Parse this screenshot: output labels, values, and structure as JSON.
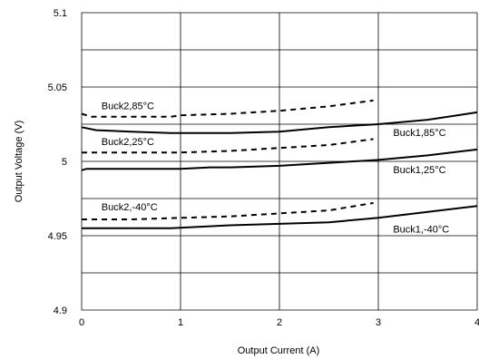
{
  "chart_data": {
    "type": "line",
    "xlabel": "Output Current (A)",
    "ylabel": "Output Voltage (V)",
    "xlim": [
      0,
      4
    ],
    "ylim": [
      4.9,
      5.1
    ],
    "x_ticks": [
      "0",
      "1",
      "2",
      "3",
      "4"
    ],
    "y_ticks": [
      "4.9",
      "4.95",
      "5",
      "5.05",
      "5.1"
    ],
    "grid": true,
    "legend": "none",
    "series": [
      {
        "name": "Buck2,85°C",
        "style": "dashed",
        "x": [
          0,
          0.05,
          0.1,
          0.5,
          0.9,
          1.0,
          1.5,
          2.0,
          2.5,
          2.95
        ],
        "y": [
          5.032,
          5.031,
          5.03,
          5.03,
          5.03,
          5.031,
          5.032,
          5.034,
          5.037,
          5.041
        ]
      },
      {
        "name": "Buck1,85°C",
        "style": "solid",
        "x": [
          0,
          0.15,
          0.5,
          0.9,
          1.5,
          2.0,
          2.5,
          3.0,
          3.5,
          4.0
        ],
        "y": [
          5.023,
          5.021,
          5.02,
          5.019,
          5.019,
          5.02,
          5.023,
          5.025,
          5.028,
          5.033
        ]
      },
      {
        "name": "Buck2,25°C",
        "style": "dashed",
        "x": [
          0,
          0.5,
          1.0,
          1.5,
          2.0,
          2.5,
          2.95
        ],
        "y": [
          5.006,
          5.006,
          5.006,
          5.007,
          5.009,
          5.011,
          5.015
        ]
      },
      {
        "name": "Buck1,25°C",
        "style": "solid",
        "x": [
          0,
          0.05,
          0.5,
          1.0,
          1.3,
          1.5,
          2.0,
          2.5,
          3.0,
          3.5,
          4.0
        ],
        "y": [
          4.994,
          4.995,
          4.995,
          4.995,
          4.996,
          4.996,
          4.997,
          4.999,
          5.001,
          5.004,
          5.008
        ]
      },
      {
        "name": "Buck2,-40°C",
        "style": "dashed",
        "x": [
          0,
          0.5,
          1.0,
          1.5,
          2.0,
          2.5,
          2.95
        ],
        "y": [
          4.961,
          4.961,
          4.962,
          4.963,
          4.965,
          4.967,
          4.972
        ]
      },
      {
        "name": "Buck1,-40°C",
        "style": "solid",
        "x": [
          0,
          0.05,
          0.5,
          0.9,
          1.5,
          2.0,
          2.5,
          3.0,
          3.5,
          4.0
        ],
        "y": [
          4.955,
          4.955,
          4.955,
          4.955,
          4.957,
          4.958,
          4.959,
          4.962,
          4.966,
          4.97
        ]
      }
    ],
    "annotations": [
      {
        "text": "Buck2,85°C",
        "x": 0.2,
        "y": 5.035
      },
      {
        "text": "Buck1,85°C",
        "x": 3.15,
        "y": 5.017
      },
      {
        "text": "Buck2,25°C",
        "x": 0.2,
        "y": 5.011
      },
      {
        "text": "Buck1,25°C",
        "x": 3.15,
        "y": 4.992
      },
      {
        "text": "Buck2,-40°C",
        "x": 0.2,
        "y": 4.967
      },
      {
        "text": "Buck1,-40°C",
        "x": 3.15,
        "y": 4.952
      }
    ]
  }
}
